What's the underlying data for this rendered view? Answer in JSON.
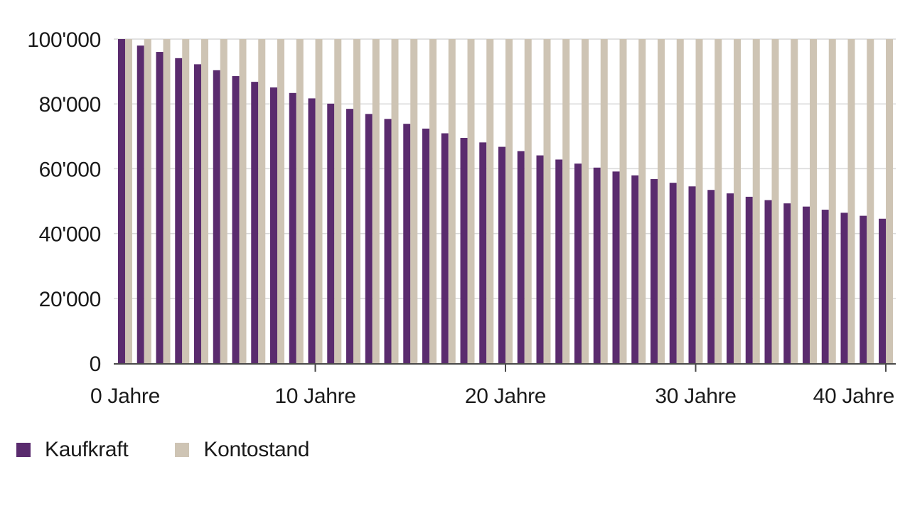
{
  "chart_data": {
    "type": "bar",
    "title": "",
    "x": [
      0,
      1,
      2,
      3,
      4,
      5,
      6,
      7,
      8,
      9,
      10,
      11,
      12,
      13,
      14,
      15,
      16,
      17,
      18,
      19,
      20,
      21,
      22,
      23,
      24,
      25,
      26,
      27,
      28,
      29,
      30,
      31,
      32,
      33,
      34,
      35,
      36,
      37,
      38,
      39,
      40
    ],
    "series": [
      {
        "name": "Kaufkraft",
        "color": "#5a2b6e",
        "values": [
          100000,
          98000,
          96040,
          94119,
          92237,
          90392,
          88584,
          86813,
          85076,
          83375,
          81707,
          80073,
          78472,
          76902,
          75364,
          73857,
          72380,
          70932,
          69514,
          68123,
          66761,
          65426,
          64117,
          62835,
          61578,
          60346,
          59139,
          57956,
          56797,
          55661,
          54548,
          53457,
          52388,
          51340,
          50313,
          49307,
          48321,
          47355,
          46408,
          45480,
          44570
        ]
      },
      {
        "name": "Kontostand",
        "color": "#cec4b4",
        "values": [
          100000,
          100000,
          100000,
          100000,
          100000,
          100000,
          100000,
          100000,
          100000,
          100000,
          100000,
          100000,
          100000,
          100000,
          100000,
          100000,
          100000,
          100000,
          100000,
          100000,
          100000,
          100000,
          100000,
          100000,
          100000,
          100000,
          100000,
          100000,
          100000,
          100000,
          100000,
          100000,
          100000,
          100000,
          100000,
          100000,
          100000,
          100000,
          100000,
          100000,
          100000
        ]
      }
    ],
    "x_axis": {
      "labels": [
        {
          "year": 0,
          "text": "0 Jahre"
        },
        {
          "year": 10,
          "text": "10 Jahre"
        },
        {
          "year": 20,
          "text": "20 Jahre"
        },
        {
          "year": 30,
          "text": "30 Jahre"
        },
        {
          "year": 40,
          "text": "40 Jahre"
        }
      ],
      "tick_years": [
        10,
        20,
        30,
        40
      ]
    },
    "y_axis": {
      "ticks": [
        {
          "value": 0,
          "label": "0"
        },
        {
          "value": 20000,
          "label": "20'000"
        },
        {
          "value": 40000,
          "label": "40'000"
        },
        {
          "value": 60000,
          "label": "60'000"
        },
        {
          "value": 80000,
          "label": "80'000"
        },
        {
          "value": 100000,
          "label": "100'000"
        }
      ]
    },
    "ylim": [
      0,
      100000
    ],
    "grid": true,
    "legend_position": "bottom-left",
    "colors": {
      "grid": "#d9d9d9",
      "axis": "#4a4a4a",
      "text": "#1a1a1a",
      "background": "#ffffff"
    }
  }
}
